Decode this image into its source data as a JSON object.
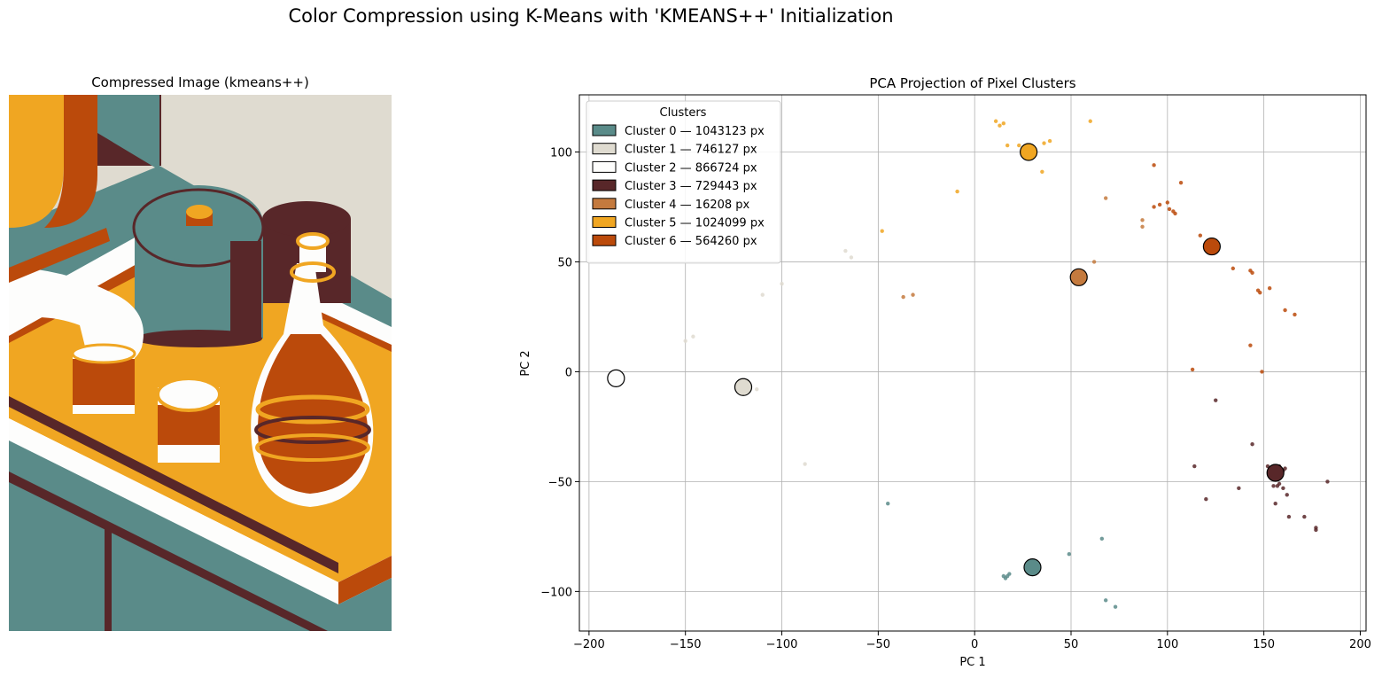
{
  "figure": {
    "suptitle": "Color Compression using K-Means with 'KMEANS++' Initialization",
    "left_title": "Compressed Image (kmeans++)"
  },
  "colors": {
    "teal": "#5a8b89",
    "cream": "#dfdbd0",
    "white": "#fdfdfc",
    "maroon": "#582729",
    "tan": "#c47a3e",
    "orange": "#f0a622",
    "rust": "#bb4a0b"
  },
  "chart_data": {
    "type": "scatter",
    "title": "PCA Projection of Pixel Clusters",
    "xlabel": "PC 1",
    "ylabel": "PC 2",
    "xlim": [
      -205,
      203
    ],
    "ylim": [
      -118,
      126
    ],
    "xticks": [
      -200,
      -150,
      -100,
      -50,
      0,
      50,
      100,
      150,
      200
    ],
    "yticks": [
      -100,
      -50,
      0,
      50,
      100
    ],
    "grid": true,
    "legend": {
      "title": "Clusters",
      "placement": "top-left",
      "entries": [
        "Cluster 0 — 1043123 px",
        "Cluster 1 — 746127 px",
        "Cluster 2 — 866724 px",
        "Cluster 3 — 729443 px",
        "Cluster 4 — 16208 px",
        "Cluster 5 — 1024099 px",
        "Cluster 6 — 564260 px"
      ]
    },
    "series": [
      {
        "color": "#5a8b89",
        "centroid": [
          30,
          -89
        ],
        "points": [
          [
            15,
            -93
          ],
          [
            16,
            -94
          ],
          [
            17,
            -93
          ],
          [
            18,
            -92
          ],
          [
            49,
            -83
          ],
          [
            66,
            -76
          ],
          [
            68,
            -104
          ],
          [
            73,
            -107
          ],
          [
            -45,
            -60
          ]
        ]
      },
      {
        "color": "#dfdbd0",
        "centroid": [
          -120,
          -7
        ],
        "points": [
          [
            -67,
            55
          ],
          [
            -64,
            52
          ],
          [
            -100,
            40
          ],
          [
            -110,
            35
          ],
          [
            -146,
            16
          ],
          [
            -150,
            14
          ],
          [
            -113,
            -8
          ],
          [
            -88,
            -42
          ]
        ]
      },
      {
        "color": "#fdfdfc",
        "centroid": [
          -186,
          -3
        ],
        "points": []
      },
      {
        "color": "#582729",
        "centroid": [
          156,
          -46
        ],
        "points": [
          [
            125,
            -13
          ],
          [
            144,
            -33
          ],
          [
            114,
            -43
          ],
          [
            152,
            -43
          ],
          [
            155,
            -44
          ],
          [
            158,
            -43
          ],
          [
            160,
            -45
          ],
          [
            161,
            -44
          ],
          [
            155,
            -52
          ],
          [
            157,
            -52
          ],
          [
            158,
            -51
          ],
          [
            160,
            -53
          ],
          [
            162,
            -56
          ],
          [
            137,
            -53
          ],
          [
            120,
            -58
          ],
          [
            156,
            -60
          ],
          [
            163,
            -66
          ],
          [
            171,
            -66
          ],
          [
            177,
            -71
          ],
          [
            177,
            -72
          ],
          [
            183,
            -50
          ]
        ]
      },
      {
        "color": "#c47a3e",
        "centroid": [
          54,
          43
        ],
        "points": [
          [
            68,
            79
          ],
          [
            62,
            50
          ],
          [
            87,
            69
          ],
          [
            87,
            66
          ],
          [
            -37,
            34
          ],
          [
            -32,
            35
          ]
        ]
      },
      {
        "color": "#f0a622",
        "centroid": [
          28,
          100
        ],
        "points": [
          [
            11,
            114
          ],
          [
            13,
            112
          ],
          [
            15,
            113
          ],
          [
            60,
            114
          ],
          [
            17,
            103
          ],
          [
            23,
            103
          ],
          [
            25,
            102
          ],
          [
            36,
            104
          ],
          [
            39,
            105
          ],
          [
            35,
            91
          ],
          [
            -9,
            82
          ],
          [
            -48,
            64
          ]
        ]
      },
      {
        "color": "#bb4a0b",
        "centroid": [
          123,
          57
        ],
        "points": [
          [
            93,
            94
          ],
          [
            107,
            86
          ],
          [
            100,
            77
          ],
          [
            96,
            76
          ],
          [
            93,
            75
          ],
          [
            101,
            74
          ],
          [
            103,
            73
          ],
          [
            104,
            72
          ],
          [
            117,
            62
          ],
          [
            134,
            47
          ],
          [
            143,
            46
          ],
          [
            144,
            45
          ],
          [
            153,
            38
          ],
          [
            147,
            37
          ],
          [
            148,
            36
          ],
          [
            161,
            28
          ],
          [
            166,
            26
          ],
          [
            143,
            12
          ],
          [
            113,
            1
          ],
          [
            149,
            0
          ]
        ]
      }
    ]
  }
}
